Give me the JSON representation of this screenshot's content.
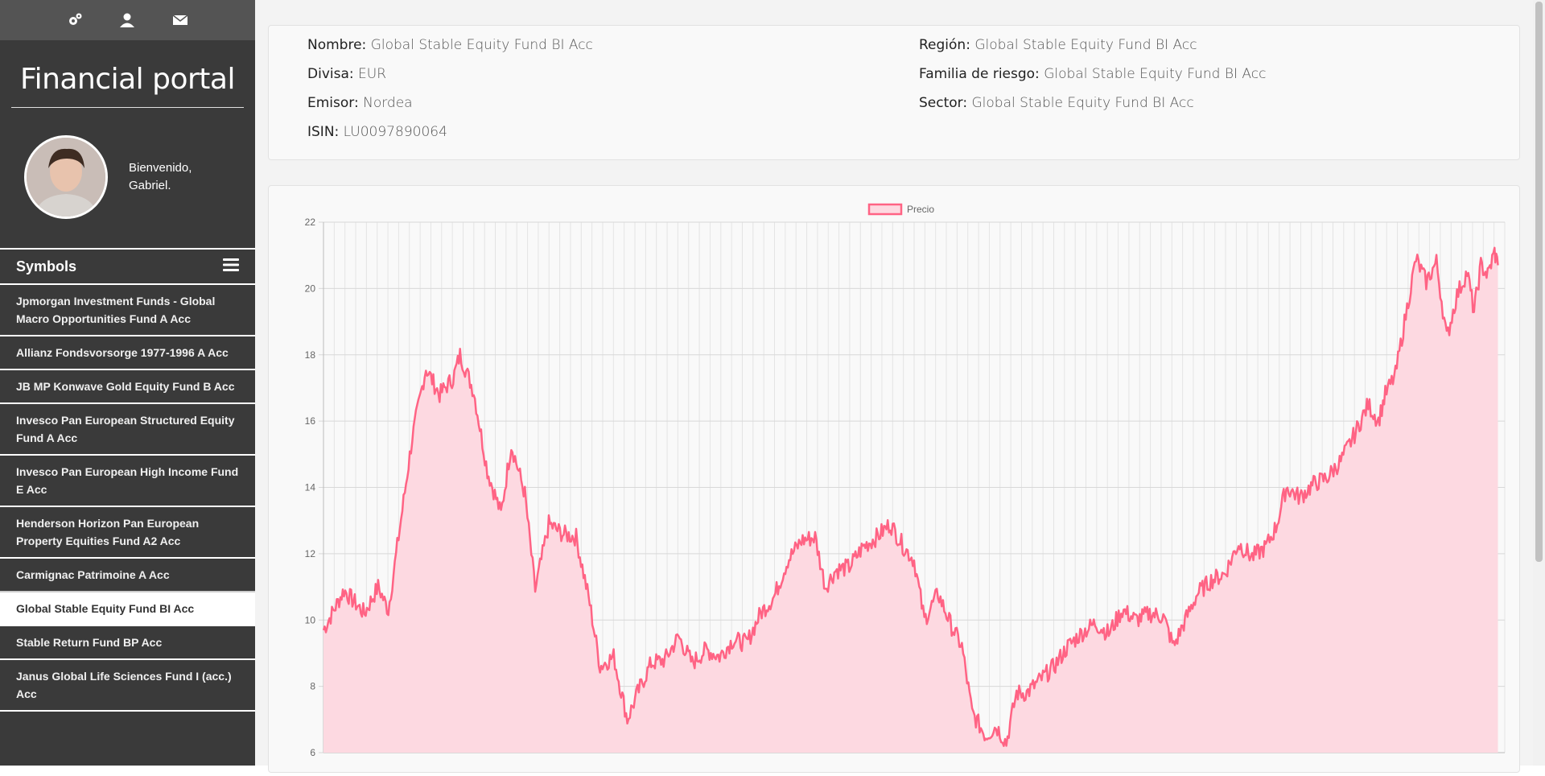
{
  "sidebar": {
    "icons": [
      "gears-icon",
      "user-icon",
      "envelope-icon"
    ],
    "brand": "Financial portal",
    "welcome_line1": "Bienvenido,",
    "welcome_line2": "Gabriel.",
    "symbols_title": "Symbols",
    "symbols": [
      {
        "label": "Jpmorgan Investment Funds - Global Macro Opportunities Fund A Acc",
        "active": false
      },
      {
        "label": "Allianz Fondsvorsorge 1977-1996 A Acc",
        "active": false
      },
      {
        "label": "JB MP Konwave Gold Equity Fund B Acc",
        "active": false
      },
      {
        "label": "Invesco Pan European Structured Equity Fund A Acc",
        "active": false
      },
      {
        "label": "Invesco Pan European High Income Fund E Acc",
        "active": false
      },
      {
        "label": "Henderson Horizon Pan European Property Equities Fund A2 Acc",
        "active": false
      },
      {
        "label": "Carmignac Patrimoine A Acc",
        "active": false
      },
      {
        "label": "Global Stable Equity Fund BI Acc",
        "active": true
      },
      {
        "label": "Stable Return Fund BP Acc",
        "active": false
      },
      {
        "label": "Janus Global Life Sciences Fund I (acc.) Acc",
        "active": false
      }
    ]
  },
  "info": {
    "nombre_label": "Nombre:",
    "nombre": "Global Stable Equity Fund BI Acc",
    "divisa_label": "Divisa:",
    "divisa": "EUR",
    "emisor_label": "Emisor:",
    "emisor": "Nordea",
    "isin_label": "ISIN:",
    "isin": "LU0097890064",
    "region_label": "Región:",
    "region": "Global Stable Equity Fund BI Acc",
    "familia_label": "Familia de riesgo:",
    "familia": "Global Stable Equity Fund BI Acc",
    "sector_label": "Sector:",
    "sector": "Global Stable Equity Fund BI Acc"
  },
  "colors": {
    "line": "#ff6384",
    "fill": "#fdd9e1"
  },
  "chart_data": {
    "type": "area",
    "legend": "Precio",
    "legend_position": "top-center",
    "grid": true,
    "ylim": [
      6,
      22
    ],
    "yticks": [
      6,
      8,
      10,
      12,
      14,
      16,
      18,
      20,
      22
    ],
    "x_start": 1999,
    "x_end": 2016,
    "series": [
      {
        "name": "Precio",
        "points": [
          [
            1999.0,
            9.7
          ],
          [
            1999.3,
            10.9
          ],
          [
            1999.6,
            10.2
          ],
          [
            1999.8,
            11.0
          ],
          [
            1999.95,
            10.3
          ],
          [
            2000.1,
            12.5
          ],
          [
            2000.3,
            15.5
          ],
          [
            2000.5,
            17.6
          ],
          [
            2000.7,
            16.8
          ],
          [
            2000.9,
            17.3
          ],
          [
            2001.0,
            18.0
          ],
          [
            2001.2,
            16.9
          ],
          [
            2001.4,
            14.5
          ],
          [
            2001.6,
            13.2
          ],
          [
            2001.75,
            15.3
          ],
          [
            2001.95,
            13.8
          ],
          [
            2002.1,
            10.9
          ],
          [
            2002.3,
            12.9
          ],
          [
            2002.5,
            12.6
          ],
          [
            2002.7,
            12.5
          ],
          [
            2002.9,
            10.5
          ],
          [
            2003.05,
            8.6
          ],
          [
            2003.25,
            8.9
          ],
          [
            2003.45,
            7.0
          ],
          [
            2003.6,
            7.8
          ],
          [
            2003.8,
            8.7
          ],
          [
            2004.0,
            8.8
          ],
          [
            2004.2,
            9.5
          ],
          [
            2004.4,
            8.7
          ],
          [
            2004.6,
            9.1
          ],
          [
            2004.8,
            8.9
          ],
          [
            2005.0,
            9.4
          ],
          [
            2005.2,
            9.3
          ],
          [
            2005.4,
            10.2
          ],
          [
            2005.6,
            10.7
          ],
          [
            2005.8,
            11.8
          ],
          [
            2006.0,
            12.4
          ],
          [
            2006.2,
            12.5
          ],
          [
            2006.35,
            11.0
          ],
          [
            2006.5,
            11.5
          ],
          [
            2006.7,
            11.6
          ],
          [
            2006.9,
            12.2
          ],
          [
            2007.1,
            12.5
          ],
          [
            2007.3,
            12.9
          ],
          [
            2007.5,
            12.2
          ],
          [
            2007.65,
            11.8
          ],
          [
            2007.8,
            10.0
          ],
          [
            2008.0,
            10.8
          ],
          [
            2008.2,
            9.8
          ],
          [
            2008.35,
            9.2
          ],
          [
            2008.5,
            7.2
          ],
          [
            2008.7,
            6.5
          ],
          [
            2008.85,
            6.8
          ],
          [
            2009.0,
            6.3
          ],
          [
            2009.15,
            7.8
          ],
          [
            2009.3,
            7.8
          ],
          [
            2009.5,
            8.2
          ],
          [
            2009.7,
            8.6
          ],
          [
            2009.9,
            9.2
          ],
          [
            2010.1,
            9.6
          ],
          [
            2010.3,
            9.9
          ],
          [
            2010.5,
            9.6
          ],
          [
            2010.7,
            10.3
          ],
          [
            2010.9,
            10.0
          ],
          [
            2011.1,
            10.2
          ],
          [
            2011.3,
            10.1
          ],
          [
            2011.45,
            9.2
          ],
          [
            2011.6,
            9.9
          ],
          [
            2011.8,
            10.8
          ],
          [
            2012.0,
            11.2
          ],
          [
            2012.2,
            11.4
          ],
          [
            2012.4,
            12.3
          ],
          [
            2012.6,
            11.9
          ],
          [
            2012.8,
            12.2
          ],
          [
            2012.95,
            12.8
          ],
          [
            2013.1,
            14.0
          ],
          [
            2013.3,
            13.7
          ],
          [
            2013.5,
            14.1
          ],
          [
            2013.7,
            14.3
          ],
          [
            2013.9,
            14.8
          ],
          [
            2014.1,
            15.6
          ],
          [
            2014.3,
            16.5
          ],
          [
            2014.45,
            16.0
          ],
          [
            2014.55,
            16.8
          ],
          [
            2014.7,
            17.4
          ],
          [
            2014.85,
            19.2
          ],
          [
            2015.0,
            20.9
          ],
          [
            2015.15,
            20.2
          ],
          [
            2015.3,
            20.8
          ],
          [
            2015.45,
            18.5
          ],
          [
            2015.6,
            19.8
          ],
          [
            2015.75,
            20.5
          ],
          [
            2015.85,
            19.3
          ],
          [
            2015.95,
            20.7
          ],
          [
            2016.05,
            20.4
          ],
          [
            2016.15,
            21.1
          ],
          [
            2016.2,
            20.7
          ]
        ]
      }
    ]
  }
}
